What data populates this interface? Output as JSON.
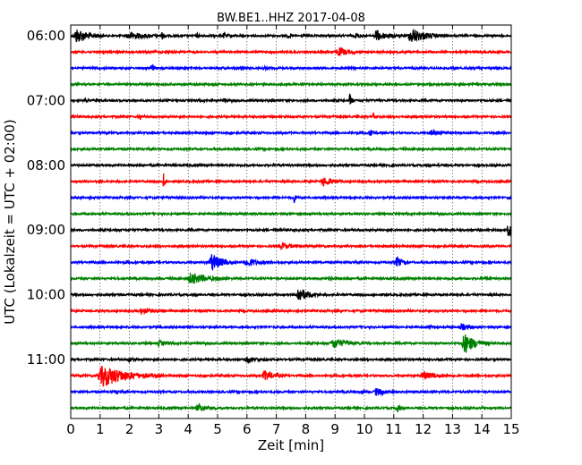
{
  "chart_data": {
    "type": "line",
    "title": "BW.BE1..HHZ 2017-04-08",
    "xlabel": "Zeit  [min]",
    "ylabel": "UTC (Lokalzeit = UTC + 02:00)",
    "xlim": [
      0,
      15
    ],
    "x_ticks": [
      "0",
      "1",
      "2",
      "3",
      "4",
      "5",
      "6",
      "7",
      "8",
      "9",
      "10",
      "11",
      "12",
      "13",
      "14",
      "15"
    ],
    "y_ticks": [
      {
        "label": "06:00",
        "trace": 0
      },
      {
        "label": "07:00",
        "trace": 4
      },
      {
        "label": "08:00",
        "trace": 8
      },
      {
        "label": "09:00",
        "trace": 12
      },
      {
        "label": "10:00",
        "trace": 16
      },
      {
        "label": "11:00",
        "trace": 20
      }
    ],
    "grid": "vertical dotted",
    "trace_interval_min": 15,
    "colors": [
      "#000000",
      "#ff0000",
      "#0000ff",
      "#008000"
    ],
    "traces": [
      {
        "start": "06:00",
        "events": [
          [
            0.2,
            1.0,
            0.4
          ],
          [
            2.0,
            0.5,
            0.5
          ],
          [
            3.1,
            0.4,
            0.1
          ],
          [
            4.3,
            0.3,
            0.1
          ],
          [
            5.2,
            0.3,
            0.1
          ],
          [
            7.4,
            0.3,
            0.1
          ],
          [
            9.7,
            0.35,
            0.15
          ],
          [
            10.4,
            0.8,
            0.3
          ],
          [
            11.6,
            1.0,
            0.5
          ]
        ]
      },
      {
        "start": "06:15",
        "events": [
          [
            5.2,
            0.25,
            0.05
          ],
          [
            9.1,
            0.6,
            0.3
          ]
        ]
      },
      {
        "start": "06:30",
        "events": [
          [
            2.75,
            0.8,
            0.05
          ],
          [
            5.8,
            0.6,
            0.05
          ],
          [
            6.6,
            0.2,
            0.05
          ]
        ]
      },
      {
        "start": "06:45",
        "events": []
      },
      {
        "start": "07:00",
        "events": [
          [
            0.5,
            0.3,
            0.05
          ],
          [
            5.25,
            0.35,
            0.05
          ],
          [
            9.5,
            1.2,
            0.05
          ]
        ]
      },
      {
        "start": "07:15",
        "events": [
          [
            2.35,
            0.5,
            0.05
          ],
          [
            10.3,
            0.6,
            0.05
          ]
        ]
      },
      {
        "start": "07:30",
        "events": [
          [
            10.2,
            0.9,
            0.05
          ],
          [
            12.3,
            0.35,
            0.3
          ]
        ]
      },
      {
        "start": "07:45",
        "events": []
      },
      {
        "start": "08:00",
        "events": [
          [
            3.5,
            0.25,
            0.05
          ],
          [
            10.8,
            0.3,
            0.05
          ],
          [
            12.5,
            0.2,
            0.05
          ]
        ]
      },
      {
        "start": "08:15",
        "events": [
          [
            3.15,
            1.2,
            0.05
          ],
          [
            8.6,
            0.6,
            0.3
          ]
        ]
      },
      {
        "start": "08:30",
        "events": [
          [
            7.6,
            0.7,
            0.05
          ],
          [
            14.9,
            0.2,
            0.1
          ]
        ]
      },
      {
        "start": "08:45",
        "events": []
      },
      {
        "start": "09:00",
        "events": [
          [
            14.9,
            1.0,
            0.2
          ]
        ]
      },
      {
        "start": "09:15",
        "events": [
          [
            7.2,
            0.4,
            0.3
          ]
        ]
      },
      {
        "start": "09:30",
        "events": [
          [
            1.9,
            0.25,
            0.05
          ],
          [
            4.8,
            1.2,
            0.35
          ],
          [
            6.0,
            0.6,
            0.3
          ],
          [
            11.1,
            0.8,
            0.15
          ]
        ]
      },
      {
        "start": "09:45",
        "events": [
          [
            1.5,
            0.2,
            0.05
          ],
          [
            4.1,
            0.8,
            0.5
          ],
          [
            8.8,
            0.2,
            0.1
          ],
          [
            14.1,
            0.3,
            0.1
          ]
        ]
      },
      {
        "start": "10:00",
        "events": [
          [
            7.75,
            1.1,
            0.3
          ]
        ]
      },
      {
        "start": "10:15",
        "events": [
          [
            2.4,
            0.4,
            0.3
          ]
        ]
      },
      {
        "start": "10:30",
        "events": [
          [
            12.2,
            0.2,
            0.1
          ],
          [
            13.3,
            0.5,
            0.2
          ]
        ]
      },
      {
        "start": "10:45",
        "events": [
          [
            3.0,
            0.35,
            0.2
          ],
          [
            8.95,
            0.7,
            0.4
          ],
          [
            13.4,
            1.4,
            0.35
          ]
        ]
      },
      {
        "start": "11:00",
        "events": [
          [
            2.0,
            0.2,
            0.2
          ],
          [
            6.0,
            0.35,
            0.3
          ]
        ]
      },
      {
        "start": "11:15",
        "events": [
          [
            1.1,
            1.5,
            0.8
          ],
          [
            6.6,
            0.7,
            0.3
          ],
          [
            12.0,
            0.45,
            0.5
          ]
        ]
      },
      {
        "start": "11:30",
        "events": [
          [
            1.5,
            0.2,
            0.1
          ],
          [
            9.9,
            0.3,
            0.05
          ],
          [
            10.4,
            0.5,
            0.3
          ]
        ]
      },
      {
        "start": "11:45",
        "events": [
          [
            4.35,
            0.5,
            0.3
          ],
          [
            11.1,
            1.3,
            0.05
          ]
        ]
      }
    ]
  }
}
